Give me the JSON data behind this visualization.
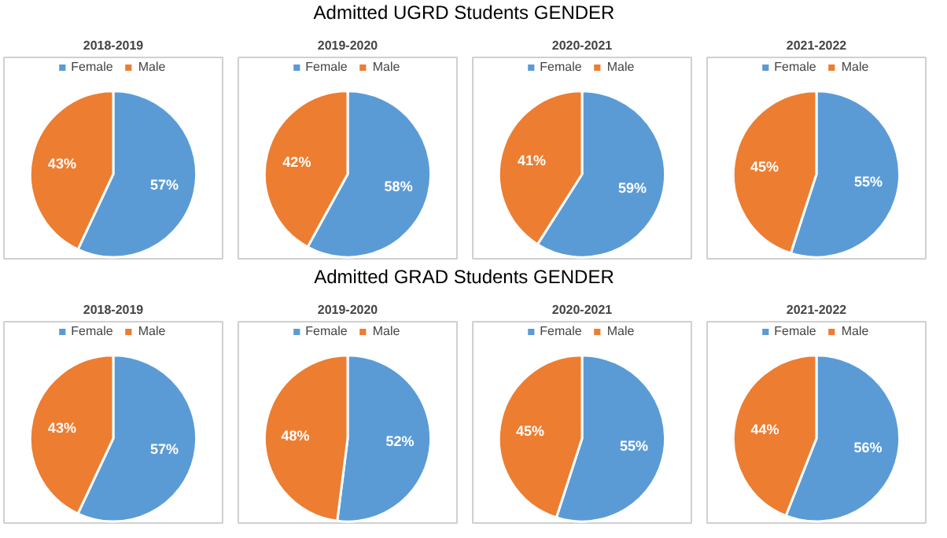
{
  "chart_data": [
    {
      "type": "pie",
      "annotations": [
        "Admitted UGRD Students GENDER"
      ],
      "title": "2018-2019",
      "categories": [
        "Female",
        "Male"
      ],
      "values": [
        57,
        43
      ],
      "value_labels": [
        "57%",
        "43%"
      ],
      "colors": [
        "#5b9bd5",
        "#ed7d31"
      ],
      "legend": "top"
    },
    {
      "type": "pie",
      "title": "2019-2020",
      "categories": [
        "Female",
        "Male"
      ],
      "values": [
        58,
        42
      ],
      "value_labels": [
        "58%",
        "42%"
      ],
      "colors": [
        "#5b9bd5",
        "#ed7d31"
      ],
      "legend": "top"
    },
    {
      "type": "pie",
      "title": "2020-2021",
      "categories": [
        "Female",
        "Male"
      ],
      "values": [
        59,
        41
      ],
      "value_labels": [
        "59%",
        "41%"
      ],
      "colors": [
        "#5b9bd5",
        "#ed7d31"
      ],
      "legend": "top"
    },
    {
      "type": "pie",
      "title": "2021-2022",
      "categories": [
        "Female",
        "Male"
      ],
      "values": [
        55,
        45
      ],
      "value_labels": [
        "55%",
        "45%"
      ],
      "colors": [
        "#5b9bd5",
        "#ed7d31"
      ],
      "legend": "top"
    },
    {
      "type": "pie",
      "annotations": [
        "Admitted GRAD Students GENDER"
      ],
      "title": "2018-2019",
      "categories": [
        "Female",
        "Male"
      ],
      "values": [
        57,
        43
      ],
      "value_labels": [
        "57%",
        "43%"
      ],
      "colors": [
        "#5b9bd5",
        "#ed7d31"
      ],
      "legend": "top"
    },
    {
      "type": "pie",
      "title": "2019-2020",
      "categories": [
        "Female",
        "Male"
      ],
      "values": [
        52,
        48
      ],
      "value_labels": [
        "52%",
        "48%"
      ],
      "colors": [
        "#5b9bd5",
        "#ed7d31"
      ],
      "legend": "top"
    },
    {
      "type": "pie",
      "title": "2020-2021",
      "categories": [
        "Female",
        "Male"
      ],
      "values": [
        55,
        45
      ],
      "value_labels": [
        "55%",
        "45%"
      ],
      "colors": [
        "#5b9bd5",
        "#ed7d31"
      ],
      "legend": "top"
    },
    {
      "type": "pie",
      "title": "2021-2022",
      "categories": [
        "Female",
        "Male"
      ],
      "values": [
        56,
        44
      ],
      "value_labels": [
        "56%",
        "44%"
      ],
      "colors": [
        "#5b9bd5",
        "#ed7d31"
      ],
      "legend": "top"
    }
  ]
}
